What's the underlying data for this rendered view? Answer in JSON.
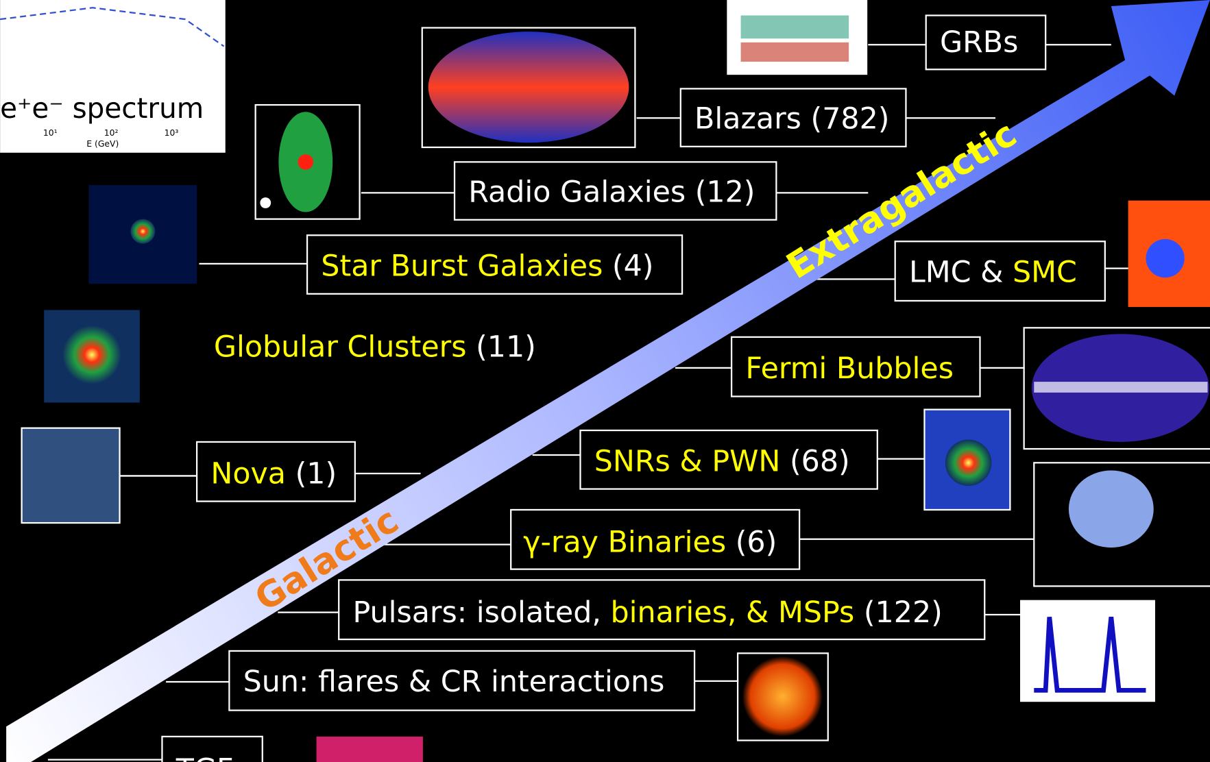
{
  "spectrum_plot": {
    "title": "e⁺e⁻ spectrum",
    "ticks": [
      "10¹",
      "10²",
      "10³"
    ],
    "xlabel": "E (GeV)"
  },
  "arrow": {
    "upper_label": "Extragalactic",
    "upper_color": "#ffff00",
    "lower_label": "Galactic",
    "lower_color": "#f07b1a"
  },
  "labels": [
    {
      "parts": [
        {
          "text": "GRBs",
          "color": "#ffffff"
        }
      ]
    },
    {
      "parts": [
        {
          "text": "Blazars (782)",
          "color": "#ffffff"
        }
      ]
    },
    {
      "parts": [
        {
          "text": "Radio Galaxies (12)",
          "color": "#ffffff"
        }
      ]
    },
    {
      "parts": [
        {
          "text": "Star Burst  Galaxies",
          "color": "#ffff00"
        },
        {
          "text": " (4)",
          "color": "#ffffff"
        }
      ]
    },
    {
      "parts": [
        {
          "text": "Globular Clusters",
          "color": "#ffff00"
        },
        {
          "text": " (11)",
          "color": "#ffffff"
        }
      ]
    },
    {
      "parts": [
        {
          "text": "LMC & ",
          "color": "#ffffff"
        },
        {
          "text": "SMC",
          "color": "#ffff00"
        }
      ]
    },
    {
      "parts": [
        {
          "text": "Fermi Bubbles",
          "color": "#ffff00"
        }
      ]
    },
    {
      "parts": [
        {
          "text": "SNRs & PWN",
          "color": "#ffff00"
        },
        {
          "text": " (68)",
          "color": "#ffffff"
        }
      ]
    },
    {
      "parts": [
        {
          "text": "Nova",
          "color": "#ffff00"
        },
        {
          "text": " (1)",
          "color": "#ffffff"
        }
      ]
    },
    {
      "parts": [
        {
          "text": "γ-ray Binaries",
          "color": "#ffff00"
        },
        {
          "text": " (6)",
          "color": "#ffffff"
        }
      ]
    },
    {
      "parts": [
        {
          "text": "Pulsars: isolated, ",
          "color": "#ffffff"
        },
        {
          "text": "binaries, & MSPs",
          "color": "#ffff00"
        },
        {
          "text": " (122)",
          "color": "#ffffff"
        }
      ]
    },
    {
      "parts": [
        {
          "text": "Sun: flares & CR interactions",
          "color": "#ffffff"
        }
      ]
    },
    {
      "parts": [
        {
          "text": "TGF",
          "color": "#ffffff"
        }
      ]
    }
  ]
}
